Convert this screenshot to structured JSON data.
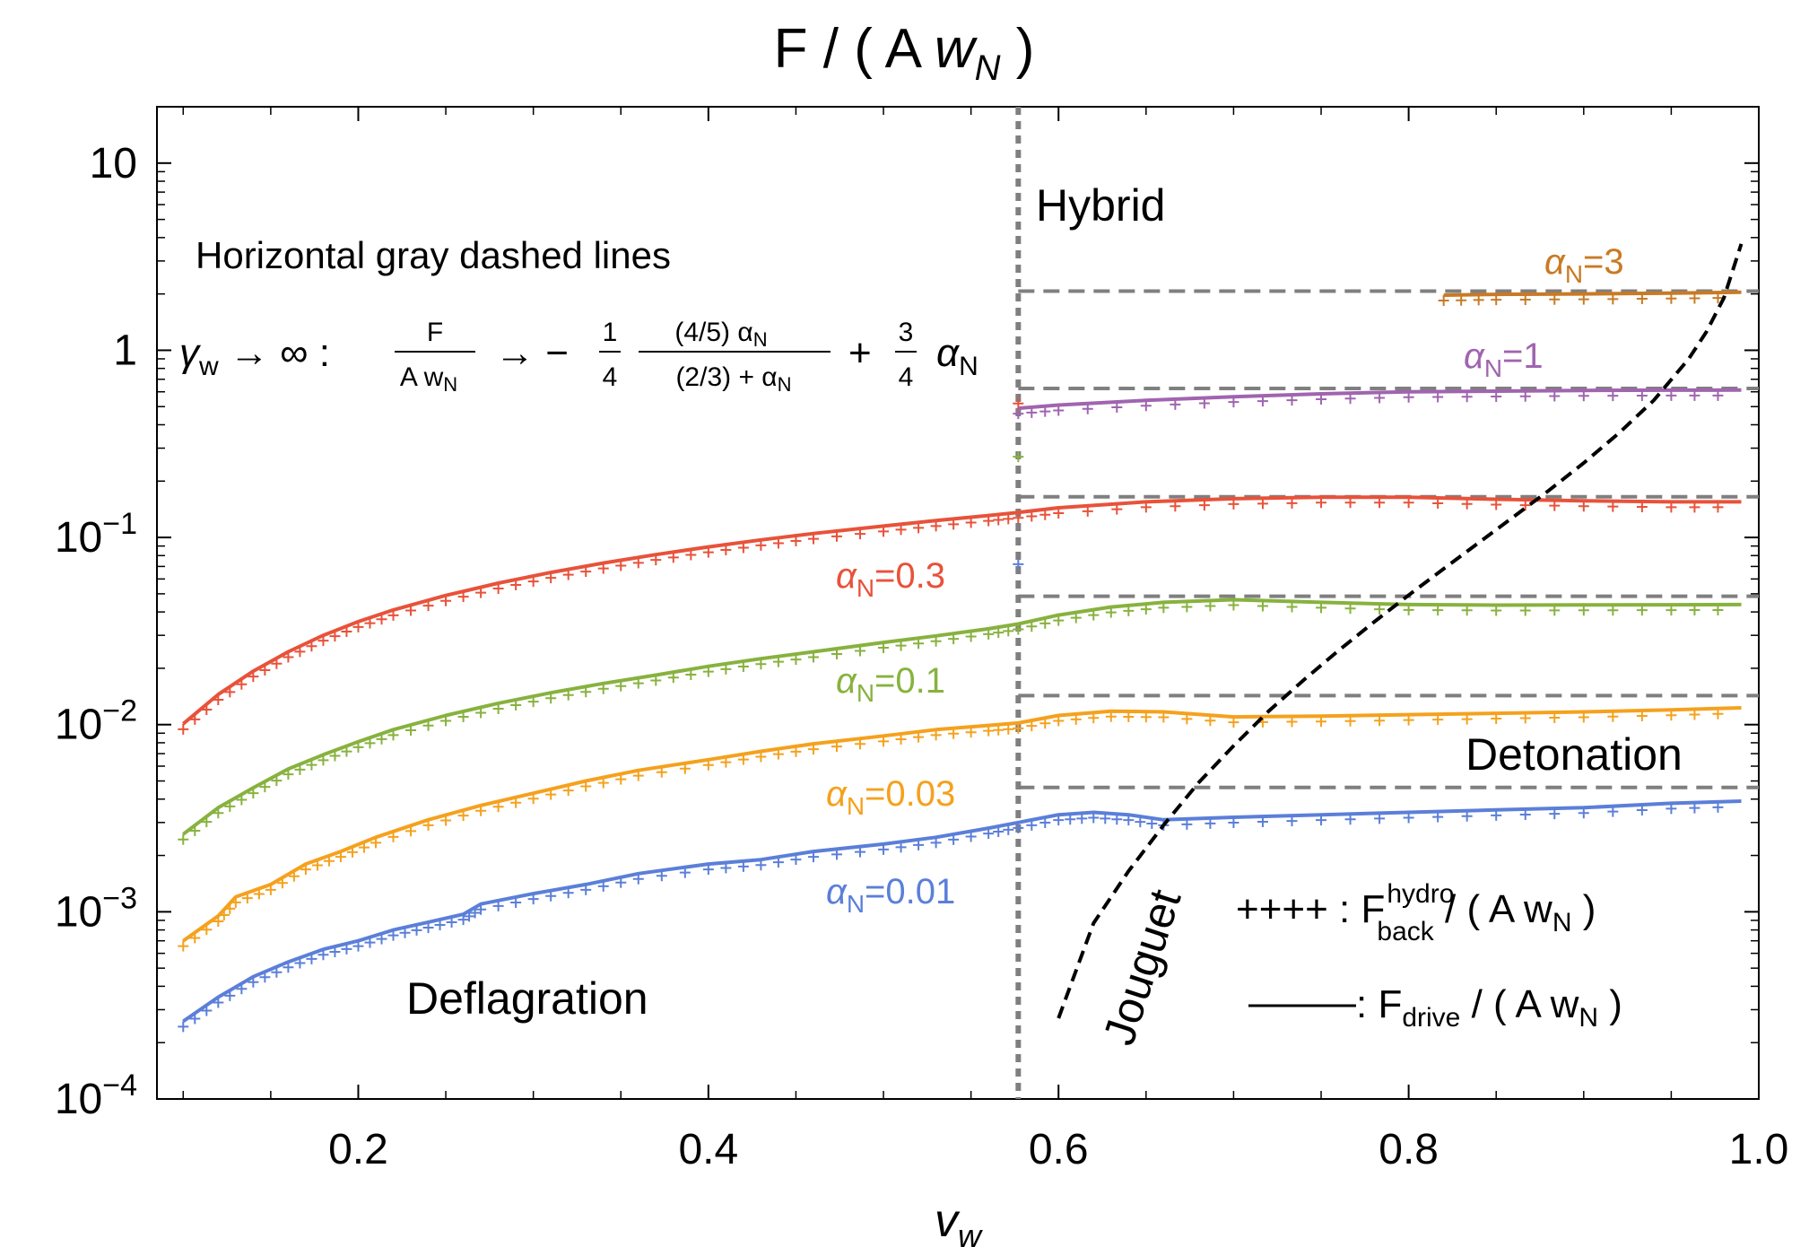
{
  "chart_data": {
    "type": "line",
    "title": "F / ( A w_N )",
    "title_parts": {
      "left": "F / ( A ",
      "italic": "w",
      "sub": "N",
      "right": " )"
    },
    "xlabel": "v_w",
    "xlabel_parts": {
      "main": "v",
      "sub": "w"
    },
    "ylabel": "",
    "x_scale": "linear",
    "y_scale": "log",
    "xlim": [
      0.085,
      1.0
    ],
    "ylim": [
      0.0001,
      20
    ],
    "xticks": [
      0.2,
      0.4,
      0.6,
      0.8,
      1.0
    ],
    "xtick_labels": [
      "0.2",
      "0.4",
      "0.6",
      "0.8",
      "1.0"
    ],
    "yticks": [
      {
        "value": 0.0001,
        "mant": "10",
        "exp": "−4"
      },
      {
        "value": 0.001,
        "mant": "10",
        "exp": "−3"
      },
      {
        "value": 0.01,
        "mant": "10",
        "exp": "−2"
      },
      {
        "value": 0.1,
        "mant": "10",
        "exp": "−1"
      },
      {
        "value": 1,
        "mant": "1",
        "exp": ""
      },
      {
        "value": 10,
        "mant": "10",
        "exp": ""
      }
    ],
    "grid": false,
    "vertical_line": {
      "x": 0.577,
      "style": "dotted",
      "color": "#7f7f7f"
    },
    "series": [
      {
        "name": "α_N=0.01",
        "label_main": "α",
        "label_sub": "N",
        "label_val": "=0.01",
        "color": "#5b7fd9",
        "x": [
          0.1,
          0.12,
          0.14,
          0.16,
          0.18,
          0.2,
          0.22,
          0.24,
          0.26,
          0.27,
          0.3,
          0.33,
          0.36,
          0.4,
          0.43,
          0.46,
          0.5,
          0.53,
          0.56,
          0.577,
          0.6,
          0.62,
          0.64,
          0.66,
          0.7,
          0.75,
          0.8,
          0.85,
          0.9,
          0.95,
          0.99
        ],
        "y": [
          0.00026,
          0.00035,
          0.00045,
          0.00054,
          0.00063,
          0.0007,
          0.0008,
          0.00088,
          0.00097,
          0.0011,
          0.00125,
          0.0014,
          0.0016,
          0.0018,
          0.0019,
          0.0021,
          0.0023,
          0.0025,
          0.0028,
          0.003,
          0.0033,
          0.0034,
          0.0033,
          0.0031,
          0.0032,
          0.0033,
          0.0034,
          0.0035,
          0.0036,
          0.0038,
          0.0039
        ]
      },
      {
        "name": "α_N=0.03",
        "label_main": "α",
        "label_sub": "N",
        "label_val": "=0.03",
        "color": "#f5a11d",
        "x": [
          0.1,
          0.12,
          0.13,
          0.15,
          0.17,
          0.19,
          0.21,
          0.24,
          0.27,
          0.3,
          0.33,
          0.36,
          0.4,
          0.43,
          0.46,
          0.5,
          0.53,
          0.56,
          0.577,
          0.6,
          0.63,
          0.66,
          0.7,
          0.75,
          0.8,
          0.85,
          0.9,
          0.95,
          0.99
        ],
        "y": [
          0.0007,
          0.00095,
          0.0012,
          0.0014,
          0.0018,
          0.0021,
          0.0025,
          0.0031,
          0.0037,
          0.0043,
          0.005,
          0.0057,
          0.0065,
          0.0072,
          0.0079,
          0.0087,
          0.0094,
          0.0099,
          0.0102,
          0.0112,
          0.0118,
          0.0117,
          0.011,
          0.0111,
          0.0113,
          0.0115,
          0.0117,
          0.012,
          0.0123
        ]
      },
      {
        "name": "α_N=0.1",
        "label_main": "α",
        "label_sub": "N",
        "label_val": "=0.1",
        "color": "#87b23e",
        "x": [
          0.1,
          0.12,
          0.14,
          0.16,
          0.18,
          0.2,
          0.22,
          0.25,
          0.28,
          0.31,
          0.34,
          0.37,
          0.4,
          0.43,
          0.46,
          0.5,
          0.53,
          0.56,
          0.577,
          0.6,
          0.63,
          0.66,
          0.7,
          0.75,
          0.8,
          0.85,
          0.9,
          0.95,
          0.99
        ],
        "y": [
          0.0026,
          0.0036,
          0.0046,
          0.0058,
          0.0069,
          0.0081,
          0.0094,
          0.0112,
          0.013,
          0.0148,
          0.0166,
          0.0184,
          0.0205,
          0.0225,
          0.0245,
          0.0275,
          0.0298,
          0.0325,
          0.0345,
          0.0385,
          0.0425,
          0.045,
          0.0465,
          0.045,
          0.0438,
          0.0435,
          0.0436,
          0.0437,
          0.0438
        ]
      },
      {
        "name": "α_N=0.3",
        "label_main": "α",
        "label_sub": "N",
        "label_val": "=0.3",
        "color": "#e8523a",
        "x": [
          0.1,
          0.12,
          0.14,
          0.16,
          0.18,
          0.2,
          0.22,
          0.25,
          0.28,
          0.31,
          0.34,
          0.37,
          0.4,
          0.43,
          0.46,
          0.5,
          0.53,
          0.56,
          0.577,
          0.6,
          0.65,
          0.7,
          0.75,
          0.8,
          0.85,
          0.9,
          0.95,
          0.99
        ],
        "y": [
          0.0101,
          0.0145,
          0.0193,
          0.0245,
          0.03,
          0.0355,
          0.041,
          0.049,
          0.057,
          0.065,
          0.073,
          0.081,
          0.089,
          0.097,
          0.105,
          0.115,
          0.123,
          0.131,
          0.136,
          0.144,
          0.155,
          0.161,
          0.164,
          0.164,
          0.16,
          0.157,
          0.155,
          0.155
        ]
      },
      {
        "name": "α_N=1",
        "label_main": "α",
        "label_sub": "N",
        "label_val": "=1",
        "color": "#a064b0",
        "x": [
          0.577,
          0.6,
          0.65,
          0.7,
          0.75,
          0.8,
          0.85,
          0.9,
          0.95,
          0.99
        ],
        "y": [
          0.49,
          0.51,
          0.54,
          0.565,
          0.585,
          0.6,
          0.605,
          0.61,
          0.612,
          0.613
        ]
      },
      {
        "name": "α_N=3",
        "label_main": "α",
        "label_sub": "N",
        "label_val": "=3",
        "color": "#c97a24",
        "x": [
          0.82,
          0.85,
          0.9,
          0.95,
          0.99
        ],
        "y": [
          1.97,
          1.99,
          2.0,
          2.02,
          2.04
        ]
      }
    ],
    "extra_markers": [
      {
        "x": 0.577,
        "y": 0.27,
        "color": "#87b23e"
      },
      {
        "x": 0.577,
        "y": 0.072,
        "color": "#5b7fd9"
      },
      {
        "x": 0.577,
        "y": 0.52,
        "color": "#e8523a"
      }
    ],
    "horizontal_dashed_lines": {
      "color": "#7f7f7f",
      "x_start": 0.577,
      "x_end": 1.0,
      "values": [
        0.00462,
        0.0143,
        0.0485,
        0.165,
        0.625,
        2.07
      ]
    },
    "jouguet_curve": {
      "color": "#000000",
      "x": [
        0.6,
        0.62,
        0.64,
        0.66,
        0.68,
        0.7,
        0.72,
        0.74,
        0.76,
        0.78,
        0.8,
        0.82,
        0.84,
        0.86,
        0.88,
        0.9,
        0.92,
        0.94,
        0.96,
        0.97,
        0.98,
        0.99
      ],
      "y": [
        0.00027,
        0.00087,
        0.00165,
        0.0029,
        0.0049,
        0.0077,
        0.0118,
        0.0173,
        0.0249,
        0.0352,
        0.0492,
        0.068,
        0.0937,
        0.129,
        0.178,
        0.25,
        0.36,
        0.54,
        0.9,
        1.25,
        1.9,
        3.7
      ]
    },
    "region_labels": {
      "hybrid": "Hybrid",
      "detonation": "Detonation",
      "deflagration": "Deflagration",
      "jouguet": "Jouguet"
    },
    "annotation": {
      "line1": "Horizontal gray dashed lines",
      "gamma": "γ",
      "gamma_sub": "w",
      "arrow_inf": " → ∞ :",
      "frac1_num": "F",
      "frac1_den": "A w",
      "frac1_den_sub": "N",
      "arrow2": "→ −",
      "frac2_num": "1",
      "frac2_den": "4",
      "frac3_num": "(4/5) α",
      "frac3_num_sub": "N",
      "frac3_den": "(2/3) + α",
      "frac3_den_sub": "N",
      "plus": "+",
      "frac4_num": "3",
      "frac4_den": "4",
      "alpha_tail": "α",
      "alpha_tail_sub": "N"
    },
    "legend": {
      "placement": "bottom-right",
      "hydro_marker": "++++",
      "hydro_colon": " : F",
      "hydro_sup": "hydro",
      "hydro_sub": "back",
      "hydro_tail": " / ( A w",
      "hydro_tail_sub": "N",
      "hydro_close": " )",
      "drive_colon": " : F",
      "drive_sub": "drive",
      "drive_tail": " / ( A w",
      "drive_tail_sub": "N",
      "drive_close": " )"
    }
  }
}
